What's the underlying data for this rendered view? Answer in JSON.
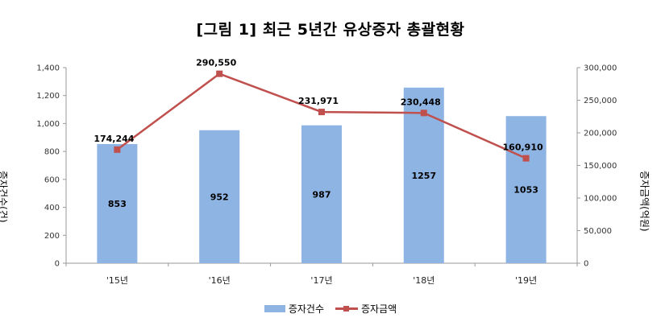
{
  "chart_data": {
    "type": "bar",
    "title": "[그림 1] 최근 5년간 유상증자 총괄현황",
    "categories": [
      "'15년",
      "'16년",
      "'17년",
      "'18년",
      "'19년"
    ],
    "ylabel": "증자건수(건)",
    "y2label": "증자금액(억원)",
    "ylim": [
      0,
      1400
    ],
    "y2lim": [
      0,
      300000
    ],
    "yticks": [
      "0",
      "200",
      "400",
      "600",
      "800",
      "1,000",
      "1,200",
      "1,400"
    ],
    "y2ticks": [
      "0",
      "50,000",
      "100,000",
      "150,000",
      "200,000",
      "250,000",
      "300,000"
    ],
    "series": [
      {
        "name": "증자건수",
        "type": "bar",
        "axis": "left",
        "color": "#8eb4e3",
        "values": [
          853,
          952,
          987,
          1257,
          1053
        ],
        "labels": [
          "853",
          "952",
          "987",
          "1257",
          "1053"
        ]
      },
      {
        "name": "증자금액",
        "type": "line",
        "axis": "right",
        "color": "#c0504d",
        "values": [
          174244,
          290550,
          231971,
          230448,
          160910
        ],
        "labels": [
          "174,244",
          "290,550",
          "231,971",
          "230,448",
          "160,910"
        ]
      }
    ],
    "legend_position": "bottom",
    "grid": false
  }
}
